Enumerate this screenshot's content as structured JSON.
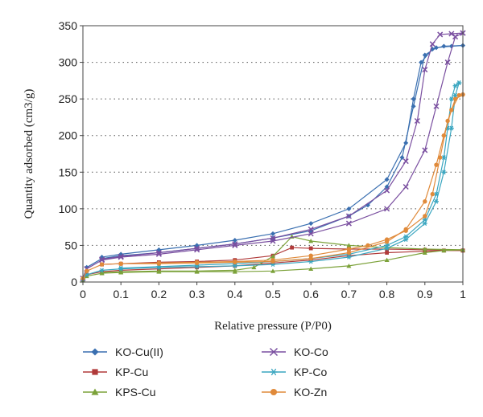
{
  "chart_data": {
    "type": "line",
    "xlabel": "Relative pressure (P/P0)",
    "ylabel": "Quantity adsorbed (cm3/g)",
    "xlim": [
      0,
      1
    ],
    "ylim": [
      0,
      350
    ],
    "x_ticks": [
      "0",
      "0.1",
      "0.2",
      "0.3",
      "0.4",
      "0.5",
      "0.6",
      "0.7",
      "0.8",
      "0.9",
      "1"
    ],
    "y_ticks": [
      "0",
      "50",
      "100",
      "150",
      "200",
      "250",
      "300",
      "350"
    ],
    "grid": "horizontal dotted",
    "legend": "bottom, two columns",
    "series": [
      {
        "name": "KO-Cu(II)",
        "color": "#3a6fb0",
        "marker": "diamond",
        "adsorption": [
          [
            0.0,
            5
          ],
          [
            0.01,
            20
          ],
          [
            0.05,
            32
          ],
          [
            0.1,
            36
          ],
          [
            0.2,
            40
          ],
          [
            0.3,
            46
          ],
          [
            0.4,
            52
          ],
          [
            0.5,
            60
          ],
          [
            0.6,
            70
          ],
          [
            0.7,
            90
          ],
          [
            0.75,
            105
          ],
          [
            0.8,
            130
          ],
          [
            0.84,
            170
          ],
          [
            0.87,
            240
          ],
          [
            0.9,
            310
          ],
          [
            0.93,
            320
          ],
          [
            0.97,
            322
          ],
          [
            1.0,
            323
          ]
        ],
        "desorption": [
          [
            1.0,
            323
          ],
          [
            0.95,
            322
          ],
          [
            0.92,
            318
          ],
          [
            0.89,
            300
          ],
          [
            0.87,
            250
          ],
          [
            0.85,
            190
          ],
          [
            0.8,
            140
          ],
          [
            0.7,
            100
          ],
          [
            0.6,
            80
          ],
          [
            0.5,
            66
          ],
          [
            0.4,
            57
          ],
          [
            0.3,
            50
          ],
          [
            0.2,
            44
          ],
          [
            0.1,
            38
          ],
          [
            0.05,
            34
          ]
        ]
      },
      {
        "name": "KP-Cu",
        "color": "#b03a3a",
        "marker": "square",
        "adsorption": [
          [
            0.0,
            3
          ],
          [
            0.01,
            10
          ],
          [
            0.05,
            14
          ],
          [
            0.1,
            16
          ],
          [
            0.2,
            18
          ],
          [
            0.3,
            20
          ],
          [
            0.4,
            22
          ],
          [
            0.5,
            26
          ],
          [
            0.6,
            30
          ],
          [
            0.7,
            36
          ],
          [
            0.8,
            40
          ],
          [
            0.9,
            42
          ],
          [
            0.95,
            43
          ],
          [
            1.0,
            43
          ]
        ],
        "desorption": [
          [
            1.0,
            43
          ],
          [
            0.9,
            44
          ],
          [
            0.8,
            45
          ],
          [
            0.7,
            45
          ],
          [
            0.6,
            46
          ],
          [
            0.55,
            47
          ],
          [
            0.5,
            36
          ],
          [
            0.4,
            30
          ],
          [
            0.3,
            28
          ],
          [
            0.2,
            27
          ],
          [
            0.1,
            25
          ],
          [
            0.05,
            24
          ]
        ]
      },
      {
        "name": "KPS-Cu",
        "color": "#7ca23a",
        "marker": "triangle",
        "adsorption": [
          [
            0.0,
            2
          ],
          [
            0.01,
            8
          ],
          [
            0.05,
            12
          ],
          [
            0.1,
            13
          ],
          [
            0.2,
            14
          ],
          [
            0.3,
            14
          ],
          [
            0.4,
            14
          ],
          [
            0.5,
            15
          ],
          [
            0.6,
            18
          ],
          [
            0.7,
            22
          ],
          [
            0.8,
            30
          ],
          [
            0.9,
            40
          ],
          [
            0.95,
            43
          ],
          [
            1.0,
            44
          ]
        ],
        "desorption": [
          [
            1.0,
            44
          ],
          [
            0.9,
            45
          ],
          [
            0.8,
            47
          ],
          [
            0.7,
            50
          ],
          [
            0.6,
            56
          ],
          [
            0.55,
            62
          ],
          [
            0.5,
            35
          ],
          [
            0.45,
            20
          ],
          [
            0.4,
            16
          ],
          [
            0.3,
            15
          ],
          [
            0.2,
            15
          ],
          [
            0.1,
            14
          ],
          [
            0.05,
            13
          ]
        ]
      },
      {
        "name": "KO-Co",
        "color": "#7a4fa0",
        "marker": "x",
        "adsorption": [
          [
            0.0,
            5
          ],
          [
            0.01,
            18
          ],
          [
            0.05,
            30
          ],
          [
            0.1,
            34
          ],
          [
            0.2,
            38
          ],
          [
            0.3,
            44
          ],
          [
            0.4,
            50
          ],
          [
            0.5,
            56
          ],
          [
            0.6,
            66
          ],
          [
            0.7,
            80
          ],
          [
            0.8,
            100
          ],
          [
            0.85,
            130
          ],
          [
            0.9,
            180
          ],
          [
            0.93,
            240
          ],
          [
            0.96,
            300
          ],
          [
            0.98,
            335
          ],
          [
            1.0,
            340
          ]
        ],
        "desorption": [
          [
            1.0,
            340
          ],
          [
            0.97,
            339
          ],
          [
            0.94,
            338
          ],
          [
            0.92,
            325
          ],
          [
            0.9,
            290
          ],
          [
            0.88,
            220
          ],
          [
            0.85,
            165
          ],
          [
            0.8,
            125
          ],
          [
            0.7,
            90
          ],
          [
            0.6,
            72
          ],
          [
            0.5,
            60
          ],
          [
            0.4,
            52
          ],
          [
            0.3,
            46
          ],
          [
            0.2,
            40
          ],
          [
            0.1,
            35
          ],
          [
            0.05,
            31
          ]
        ]
      },
      {
        "name": "KP-Co",
        "color": "#3aa6c0",
        "marker": "asterisk",
        "adsorption": [
          [
            0.0,
            4
          ],
          [
            0.01,
            10
          ],
          [
            0.05,
            16
          ],
          [
            0.1,
            18
          ],
          [
            0.2,
            20
          ],
          [
            0.3,
            21
          ],
          [
            0.4,
            22
          ],
          [
            0.5,
            24
          ],
          [
            0.6,
            28
          ],
          [
            0.7,
            34
          ],
          [
            0.8,
            46
          ],
          [
            0.85,
            58
          ],
          [
            0.9,
            80
          ],
          [
            0.93,
            110
          ],
          [
            0.95,
            150
          ],
          [
            0.97,
            210
          ],
          [
            0.98,
            255
          ],
          [
            0.99,
            272
          ]
        ],
        "desorption": [
          [
            0.99,
            272
          ],
          [
            0.98,
            268
          ],
          [
            0.97,
            250
          ],
          [
            0.96,
            210
          ],
          [
            0.95,
            170
          ],
          [
            0.93,
            120
          ],
          [
            0.9,
            85
          ],
          [
            0.85,
            62
          ],
          [
            0.8,
            50
          ],
          [
            0.7,
            38
          ],
          [
            0.6,
            32
          ],
          [
            0.5,
            28
          ],
          [
            0.4,
            25
          ],
          [
            0.3,
            23
          ],
          [
            0.2,
            21
          ],
          [
            0.1,
            19
          ]
        ]
      },
      {
        "name": "KO-Zn",
        "color": "#e08a3a",
        "marker": "circle",
        "adsorption": [
          [
            0.0,
            5
          ],
          [
            0.01,
            15
          ],
          [
            0.05,
            24
          ],
          [
            0.1,
            25
          ],
          [
            0.2,
            25
          ],
          [
            0.3,
            26
          ],
          [
            0.4,
            27
          ],
          [
            0.5,
            28
          ],
          [
            0.6,
            32
          ],
          [
            0.7,
            40
          ],
          [
            0.8,
            55
          ],
          [
            0.85,
            72
          ],
          [
            0.9,
            110
          ],
          [
            0.93,
            160
          ],
          [
            0.95,
            200
          ],
          [
            0.97,
            235
          ],
          [
            0.99,
            255
          ],
          [
            1.0,
            256
          ]
        ],
        "desorption": [
          [
            1.0,
            256
          ],
          [
            0.98,
            250
          ],
          [
            0.96,
            220
          ],
          [
            0.94,
            170
          ],
          [
            0.92,
            120
          ],
          [
            0.9,
            90
          ],
          [
            0.85,
            70
          ],
          [
            0.8,
            58
          ],
          [
            0.75,
            50
          ],
          [
            0.7,
            45
          ],
          [
            0.6,
            36
          ],
          [
            0.5,
            30
          ],
          [
            0.4,
            28
          ],
          [
            0.3,
            27
          ],
          [
            0.2,
            26
          ],
          [
            0.1,
            25
          ]
        ]
      }
    ]
  }
}
